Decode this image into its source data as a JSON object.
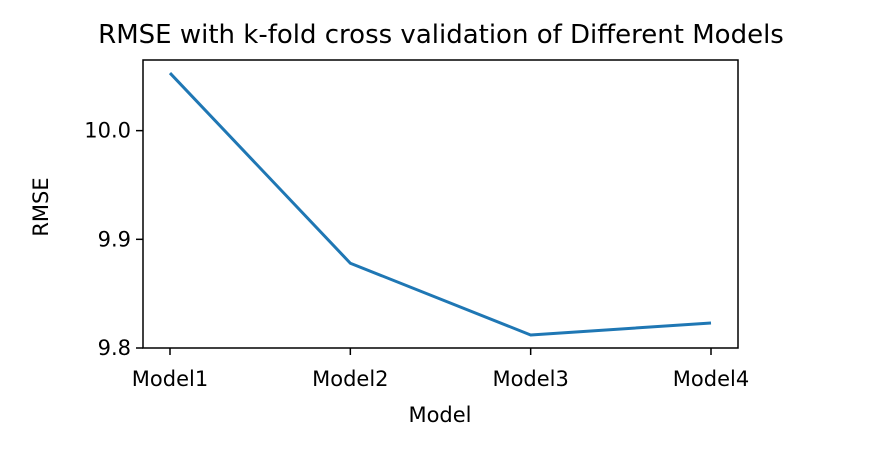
{
  "chart_data": {
    "type": "line",
    "title": "RMSE with k-fold cross validation of Different Models",
    "xlabel": "Model",
    "ylabel": "RMSE",
    "categories": [
      "Model1",
      "Model2",
      "Model3",
      "Model4"
    ],
    "series": [
      {
        "values": [
          10.053,
          9.878,
          9.812,
          9.823
        ]
      }
    ],
    "ylim": [
      9.8,
      10.065
    ],
    "yticks": [
      9.8,
      9.9,
      10.0
    ],
    "ytick_labels": [
      "9.8",
      "9.9",
      "10.0"
    ],
    "line_color": "#1f77b4",
    "grid": false
  }
}
